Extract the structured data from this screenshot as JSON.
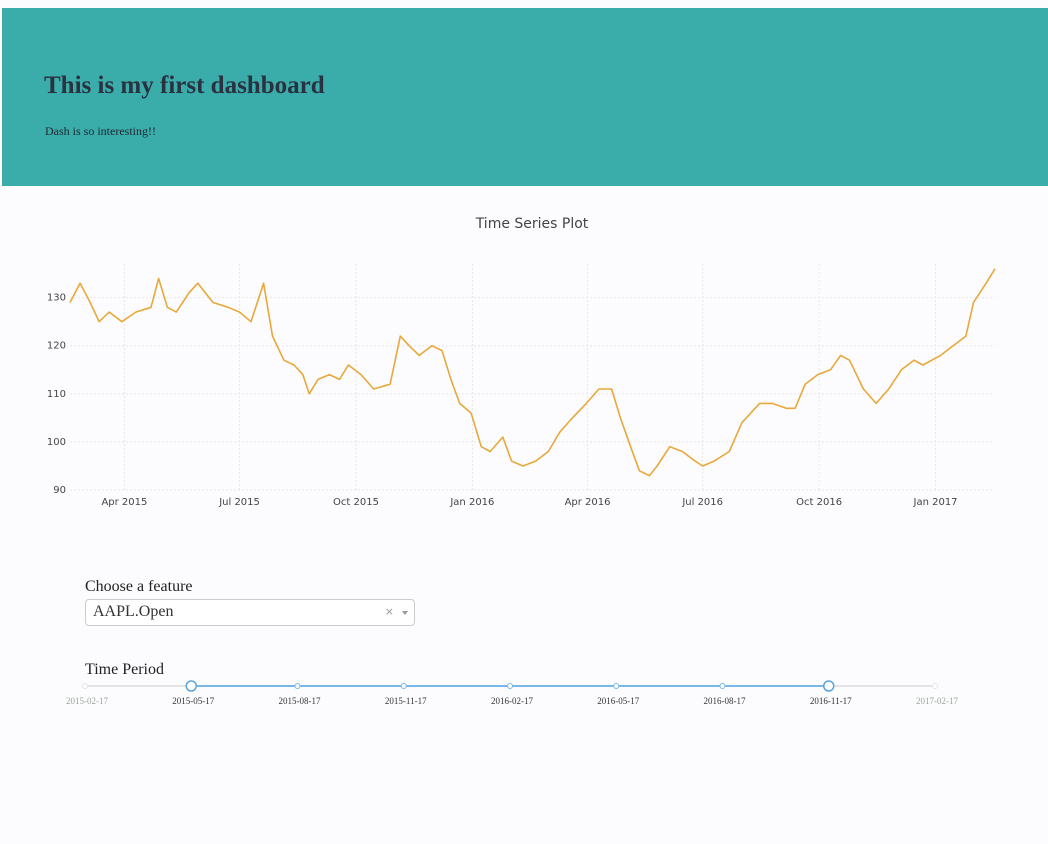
{
  "header": {
    "title": "This is my first dashboard",
    "subtitle": "Dash is so interesting!!"
  },
  "colors": {
    "header_bg": "#3aadaa",
    "line": "#e8a83a",
    "slider_track": "#79b8e6",
    "slider_handle": "#5aa5e0"
  },
  "chart_data": {
    "type": "line",
    "title": "Time Series Plot",
    "xlabel": "",
    "ylabel": "",
    "ylim": [
      90,
      137
    ],
    "yticks": [
      90,
      100,
      110,
      120,
      130
    ],
    "xticks": [
      "Apr 2015",
      "Jul 2015",
      "Oct 2015",
      "Jan 2016",
      "Apr 2016",
      "Jul 2016",
      "Oct 2016",
      "Jan 2017"
    ],
    "series": [
      {
        "values": [
          {
            "x": "2015-02-17",
            "y": 129
          },
          {
            "x": "2015-02-25",
            "y": 133
          },
          {
            "x": "2015-03-05",
            "y": 129
          },
          {
            "x": "2015-03-12",
            "y": 125
          },
          {
            "x": "2015-03-20",
            "y": 127
          },
          {
            "x": "2015-03-30",
            "y": 125
          },
          {
            "x": "2015-04-10",
            "y": 127
          },
          {
            "x": "2015-04-22",
            "y": 128
          },
          {
            "x": "2015-04-28",
            "y": 134
          },
          {
            "x": "2015-05-05",
            "y": 128
          },
          {
            "x": "2015-05-12",
            "y": 127
          },
          {
            "x": "2015-05-22",
            "y": 131
          },
          {
            "x": "2015-05-29",
            "y": 133
          },
          {
            "x": "2015-06-10",
            "y": 129
          },
          {
            "x": "2015-06-22",
            "y": 128
          },
          {
            "x": "2015-07-01",
            "y": 127
          },
          {
            "x": "2015-07-10",
            "y": 125
          },
          {
            "x": "2015-07-20",
            "y": 133
          },
          {
            "x": "2015-07-27",
            "y": 122
          },
          {
            "x": "2015-08-05",
            "y": 117
          },
          {
            "x": "2015-08-13",
            "y": 116
          },
          {
            "x": "2015-08-20",
            "y": 114
          },
          {
            "x": "2015-08-25",
            "y": 110
          },
          {
            "x": "2015-09-01",
            "y": 113
          },
          {
            "x": "2015-09-10",
            "y": 114
          },
          {
            "x": "2015-09-18",
            "y": 113
          },
          {
            "x": "2015-09-25",
            "y": 116
          },
          {
            "x": "2015-10-05",
            "y": 114
          },
          {
            "x": "2015-10-15",
            "y": 111
          },
          {
            "x": "2015-10-28",
            "y": 112
          },
          {
            "x": "2015-11-05",
            "y": 122
          },
          {
            "x": "2015-11-12",
            "y": 120
          },
          {
            "x": "2015-11-20",
            "y": 118
          },
          {
            "x": "2015-11-30",
            "y": 120
          },
          {
            "x": "2015-12-08",
            "y": 119
          },
          {
            "x": "2015-12-15",
            "y": 113
          },
          {
            "x": "2015-12-22",
            "y": 108
          },
          {
            "x": "2015-12-31",
            "y": 106
          },
          {
            "x": "2016-01-08",
            "y": 99
          },
          {
            "x": "2016-01-15",
            "y": 98
          },
          {
            "x": "2016-01-25",
            "y": 101
          },
          {
            "x": "2016-02-01",
            "y": 96
          },
          {
            "x": "2016-02-10",
            "y": 95
          },
          {
            "x": "2016-02-20",
            "y": 96
          },
          {
            "x": "2016-03-01",
            "y": 98
          },
          {
            "x": "2016-03-10",
            "y": 102
          },
          {
            "x": "2016-03-20",
            "y": 105
          },
          {
            "x": "2016-03-31",
            "y": 108
          },
          {
            "x": "2016-04-10",
            "y": 111
          },
          {
            "x": "2016-04-20",
            "y": 111
          },
          {
            "x": "2016-04-27",
            "y": 105
          },
          {
            "x": "2016-05-05",
            "y": 99
          },
          {
            "x": "2016-05-12",
            "y": 94
          },
          {
            "x": "2016-05-20",
            "y": 93
          },
          {
            "x": "2016-05-26",
            "y": 95
          },
          {
            "x": "2016-06-05",
            "y": 99
          },
          {
            "x": "2016-06-15",
            "y": 98
          },
          {
            "x": "2016-06-25",
            "y": 96
          },
          {
            "x": "2016-07-01",
            "y": 95
          },
          {
            "x": "2016-07-10",
            "y": 96
          },
          {
            "x": "2016-07-22",
            "y": 98
          },
          {
            "x": "2016-08-01",
            "y": 104
          },
          {
            "x": "2016-08-15",
            "y": 108
          },
          {
            "x": "2016-08-25",
            "y": 108
          },
          {
            "x": "2016-09-05",
            "y": 107
          },
          {
            "x": "2016-09-12",
            "y": 107
          },
          {
            "x": "2016-09-20",
            "y": 112
          },
          {
            "x": "2016-09-30",
            "y": 114
          },
          {
            "x": "2016-10-10",
            "y": 115
          },
          {
            "x": "2016-10-18",
            "y": 118
          },
          {
            "x": "2016-10-25",
            "y": 117
          },
          {
            "x": "2016-11-05",
            "y": 111
          },
          {
            "x": "2016-11-15",
            "y": 108
          },
          {
            "x": "2016-11-25",
            "y": 111
          },
          {
            "x": "2016-12-05",
            "y": 115
          },
          {
            "x": "2016-12-15",
            "y": 117
          },
          {
            "x": "2016-12-22",
            "y": 116
          },
          {
            "x": "2017-01-05",
            "y": 118
          },
          {
            "x": "2017-01-15",
            "y": 120
          },
          {
            "x": "2017-01-25",
            "y": 122
          },
          {
            "x": "2017-01-31",
            "y": 129
          },
          {
            "x": "2017-02-10",
            "y": 133
          },
          {
            "x": "2017-02-17",
            "y": 136
          }
        ]
      }
    ],
    "grid": true
  },
  "feature": {
    "label": "Choose a feature",
    "value": "AAPL.Open",
    "clear": "×"
  },
  "period": {
    "label": "Time Period",
    "marks": [
      "2015-02-17",
      "2015-05-17",
      "2015-08-17",
      "2015-11-17",
      "2016-02-17",
      "2016-05-17",
      "2016-08-17",
      "2016-11-17",
      "2017-02-17"
    ],
    "range_start": "2015-05-17",
    "range_end": "2016-11-17"
  }
}
